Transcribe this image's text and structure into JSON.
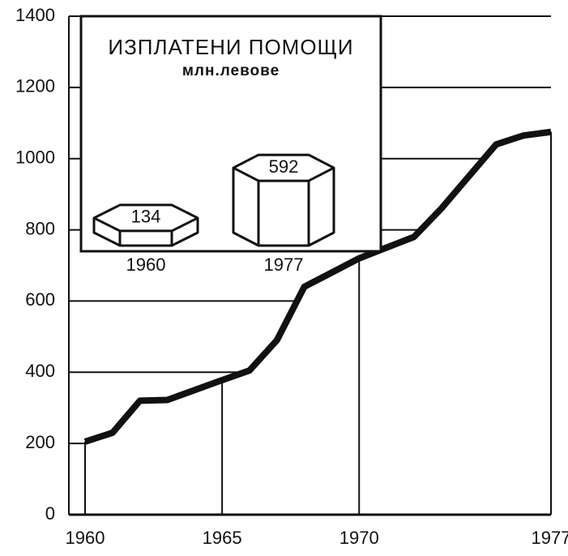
{
  "chart_data": [
    {
      "type": "line",
      "x": [
        1960,
        1961,
        1962,
        1963,
        1964,
        1965,
        1966,
        1967,
        1968,
        1969,
        1970,
        1971,
        1972,
        1973,
        1974,
        1975,
        1976,
        1977
      ],
      "series": [
        {
          "color": "#111111",
          "values": [
            205,
            230,
            320,
            322,
            350,
            378,
            405,
            490,
            640,
            680,
            720,
            750,
            780,
            860,
            950,
            1040,
            1065,
            1075
          ]
        }
      ],
      "xlim": [
        1960,
        1977
      ],
      "xticks": [
        1960,
        1965,
        1970,
        1977
      ],
      "ylim": [
        0,
        1400
      ],
      "yticks": [
        0,
        200,
        400,
        600,
        800,
        1000,
        1200,
        1400
      ],
      "grid": true
    },
    {
      "type": "bar",
      "title": "ИЗПЛАТЕНИ ПОМОЩИ",
      "subtitle": "млн.левове",
      "categories": [
        "1960",
        "1977"
      ],
      "values": [
        134,
        592
      ],
      "color": "#ffffff"
    }
  ]
}
